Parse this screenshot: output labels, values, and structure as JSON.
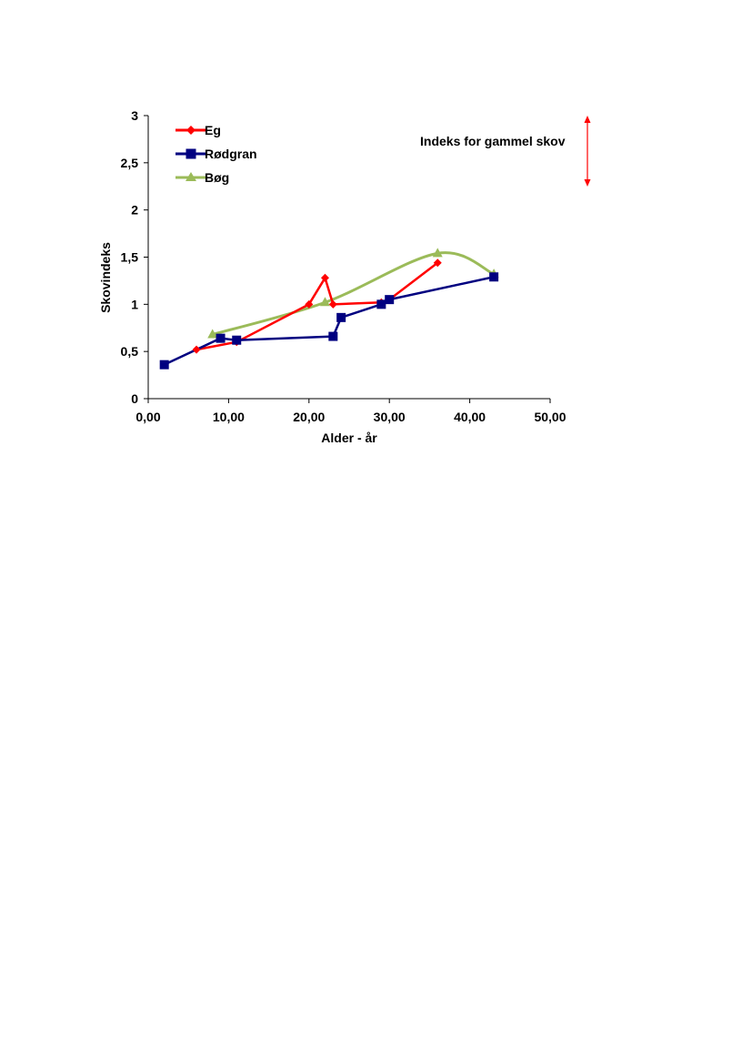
{
  "chart_data": {
    "type": "line",
    "xlabel": "Alder - år",
    "ylabel": "Skovindeks",
    "xlim": [
      0,
      50
    ],
    "ylim": [
      0,
      3
    ],
    "xticks": [
      "0,00",
      "10,00",
      "20,00",
      "30,00",
      "40,00",
      "50,00"
    ],
    "yticks": [
      "0",
      "0,5",
      "1",
      "1,5",
      "2",
      "2,5",
      "3"
    ],
    "grid": false,
    "legend_position": "top-left",
    "annotation": "Indeks for gammel skov",
    "series": [
      {
        "name": "Eg",
        "color": "#ff0000",
        "marker": "diamond",
        "smooth": false,
        "x": [
          6,
          11,
          20,
          22,
          23,
          29,
          30,
          36
        ],
        "y": [
          0.52,
          0.6,
          1.0,
          1.28,
          1.0,
          1.02,
          1.05,
          1.44
        ]
      },
      {
        "name": "Rødgran",
        "color": "#000080",
        "marker": "square",
        "smooth": false,
        "x": [
          2,
          9,
          11,
          23,
          24,
          29,
          30,
          43
        ],
        "y": [
          0.36,
          0.64,
          0.62,
          0.66,
          0.86,
          1.0,
          1.05,
          1.29
        ]
      },
      {
        "name": "Bøg",
        "color": "#9bbb59",
        "marker": "triangle",
        "smooth": true,
        "x": [
          8,
          22,
          36,
          43
        ],
        "y": [
          0.68,
          1.02,
          1.54,
          1.32
        ]
      }
    ]
  }
}
